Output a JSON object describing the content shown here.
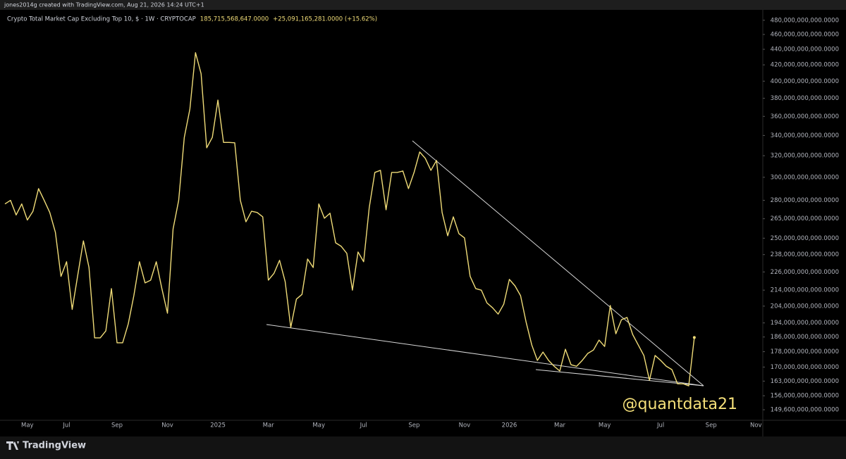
{
  "credit": "jones2014g created with TradingView.com, Aug 21, 2026 14:24 UTC+1",
  "watermark": "@quantdata21",
  "brand": "TradingView",
  "chart_data": {
    "type": "line",
    "title": "Crypto Total Market Cap Excluding Top 10, $ · 1W · CRYPTOCAP",
    "price_label": "185,715,568,647.0000",
    "change_label": "+25,091,165,281.0000 (+15.62%)",
    "color": "#f0dc78",
    "log_scale": true,
    "grid": false,
    "categories": [
      null,
      null,
      null,
      null,
      "May",
      null,
      null,
      null,
      null,
      null,
      null,
      "Jul",
      null,
      null,
      null,
      null,
      null,
      null,
      null,
      null,
      "Sep",
      null,
      null,
      null,
      null,
      null,
      null,
      null,
      null,
      "Nov",
      null,
      null,
      null,
      null,
      null,
      null,
      null,
      null,
      "2025",
      null,
      null,
      null,
      null,
      null,
      null,
      null,
      null,
      "Mar",
      null,
      null,
      null,
      null,
      null,
      null,
      null,
      null,
      "May",
      null,
      null,
      null,
      null,
      null,
      null,
      null,
      "Jul",
      null,
      null,
      null,
      null,
      null,
      null,
      null,
      null,
      "Sep",
      null,
      null,
      null,
      null,
      null,
      null,
      null,
      null,
      "Nov",
      null,
      null,
      null,
      null,
      null,
      null,
      null,
      "2026",
      null,
      null,
      null,
      null,
      null,
      null,
      null,
      null,
      "Mar",
      null,
      null,
      null,
      null,
      null,
      null,
      null,
      "May",
      null,
      null,
      null,
      null,
      null,
      null,
      null,
      null,
      null,
      "Jul",
      null,
      null,
      null,
      null,
      null,
      null,
      null,
      null,
      "Sep",
      null,
      null,
      null,
      null,
      null,
      null,
      null,
      "Nov"
    ],
    "values": [
      277000000000.0,
      280000000000.0,
      268000000000.0,
      277000000000.0,
      264000000000.0,
      271000000000.0,
      290000000000.0,
      280000000000.0,
      270000000000.0,
      254500000000.0,
      223000000000.0,
      233000000000.0,
      202000000000.0,
      224000000000.0,
      248000000000.0,
      229000000000.0,
      185500000000.0,
      185500000000.0,
      189400000000.0,
      215000000000.0,
      182800000000.0,
      182800000000.0,
      193400000000.0,
      210500000000.0,
      233000000000.0,
      218700000000.0,
      220500000000.0,
      233000000000.0,
      215000000000.0,
      199700000000.0,
      257000000000.0,
      280000000000.0,
      338000000000.0,
      368000000000.0,
      435600000000.0,
      409000000000.0,
      327700000000.0,
      338000000000.0,
      378000000000.0,
      333000000000.0,
      333000000000.0,
      332600000000.0,
      280000000000.0,
      262600000000.0,
      271000000000.0,
      270000000000.0,
      266500000000.0,
      220500000000.0,
      225000000000.0,
      234000000000.0,
      219500000000.0,
      191400000000.0,
      208300000000.0,
      211300000000.0,
      234900000000.0,
      229000000000.0,
      277000000000.0,
      265400000000.0,
      269400000000.0,
      246600000000.0,
      244000000000.0,
      238900000000.0,
      214000000000.0,
      239900000000.0,
      233000000000.0,
      274000000000.0,
      304400000000.0,
      306300000000.0,
      272200000000.0,
      304400000000.0,
      304400000000.0,
      305700000000.0,
      290000000000.0,
      304400000000.0,
      323600000000.0,
      317500000000.0,
      306300000000.0,
      315500000000.0,
      270000000000.0,
      251800000000.0,
      266500000000.0,
      253400000000.0,
      250200000000.0,
      223000000000.0,
      215000000000.0,
      214000000000.0,
      206000000000.0,
      203000000000.0,
      199200000000.0,
      205200000000.0,
      221000000000.0,
      216800000000.0,
      210500000000.0,
      194300000000.0,
      181600000000.0,
      173400000000.0,
      177800000000.0,
      173400000000.0,
      170400000000.0,
      168000000000.0,
      179300000000.0,
      171200000000.0,
      170400000000.0,
      173400000000.0,
      177100000000.0,
      178900000000.0,
      184300000000.0,
      180800000000.0,
      204400000000.0,
      187800000000.0,
      195900000000.0,
      197200000000.0,
      187400000000.0,
      181600000000.0,
      176000000000.0,
      163400000000.0,
      176000000000.0,
      173400000000.0,
      170400000000.0,
      168700000000.0,
      161700000000.0,
      161700000000.0,
      160700000000.0,
      185715568647,
      null,
      null,
      null,
      null,
      null,
      null,
      null,
      null,
      null,
      null,
      null
    ],
    "ylim": [
      146500000000.0,
      491000000000.0
    ],
    "yticks": [
      {
        "value": 480000000000.0,
        "label": "480,000,000,000.0000"
      },
      {
        "value": 460000000000.0,
        "label": "460,000,000,000.0000"
      },
      {
        "value": 440000000000.0,
        "label": "440,000,000,000.0000"
      },
      {
        "value": 420000000000.0,
        "label": "420,000,000,000.0000"
      },
      {
        "value": 400000000000.0,
        "label": "400,000,000,000.0000"
      },
      {
        "value": 380000000000.0,
        "label": "380,000,000,000.0000"
      },
      {
        "value": 360000000000.0,
        "label": "360,000,000,000.0000"
      },
      {
        "value": 340000000000.0,
        "label": "340,000,000,000.0000"
      },
      {
        "value": 320000000000.0,
        "label": "320,000,000,000.0000"
      },
      {
        "value": 300000000000.0,
        "label": "300,000,000,000.0000"
      },
      {
        "value": 280000000000.0,
        "label": "280,000,000,000.0000"
      },
      {
        "value": 265000000000.0,
        "label": "265,000,000,000.0000"
      },
      {
        "value": 250000000000.0,
        "label": "250,000,000,000.0000"
      },
      {
        "value": 238000000000.0,
        "label": "238,000,000,000.0000"
      },
      {
        "value": 226000000000.0,
        "label": "226,000,000,000.0000"
      },
      {
        "value": 214000000000.0,
        "label": "214,000,000,000.0000"
      },
      {
        "value": 204000000000.0,
        "label": "204,000,000,000.0000"
      },
      {
        "value": 194000000000.0,
        "label": "194,000,000,000.0000"
      },
      {
        "value": 186000000000.0,
        "label": "186,000,000,000.0000"
      },
      {
        "value": 178000000000.0,
        "label": "178,000,000,000.0000"
      },
      {
        "value": 170000000000.0,
        "label": "170,000,000,000.0000"
      },
      {
        "value": 163000000000.0,
        "label": "163,000,000,000.0000"
      },
      {
        "value": 156000000000.0,
        "label": "156,000,000,000.0000"
      },
      {
        "value": 149600000000.0,
        "label": "149,600,000,000.0000"
      }
    ]
  }
}
